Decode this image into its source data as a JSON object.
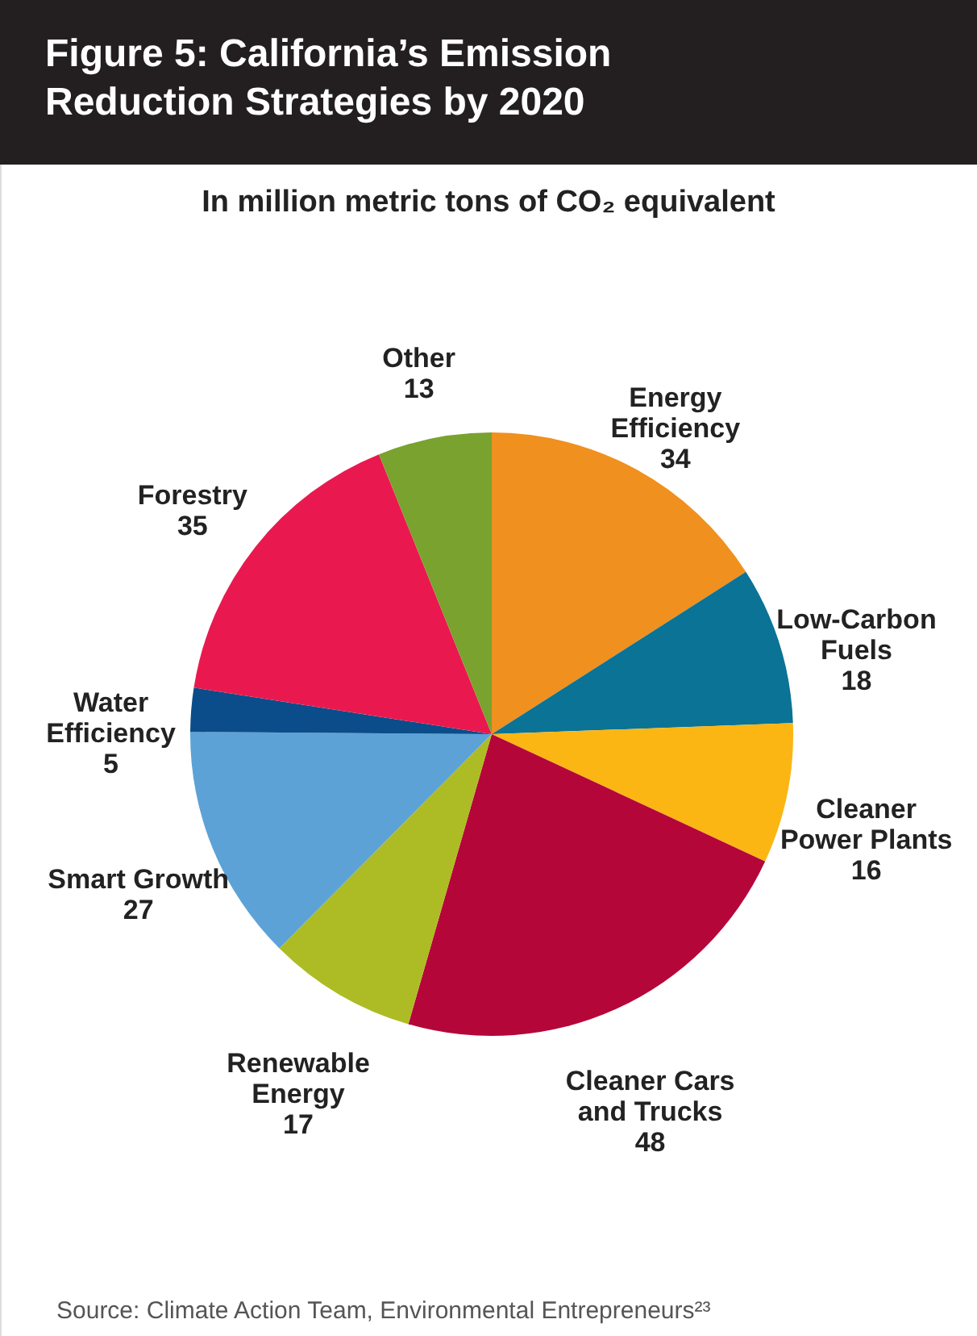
{
  "chart_data": {
    "type": "pie",
    "title": "Figure 5: California’s Emission Reduction Strategies by 2020",
    "subtitle": "In million metric tons of CO₂ equivalent",
    "categories": [
      "Energy Efficiency",
      "Low-Carbon Fuels",
      "Cleaner Power Plants",
      "Cleaner Cars and Trucks",
      "Renewable Energy",
      "Smart Growth",
      "Water Efficiency",
      "Forestry",
      "Other"
    ],
    "values": [
      34,
      18,
      16,
      48,
      17,
      27,
      5,
      35,
      13
    ],
    "colors": [
      "#f0901e",
      "#0a7396",
      "#fbb614",
      "#b5063a",
      "#adbc24",
      "#5ca2d6",
      "#0a4d8a",
      "#e9194f",
      "#79a22f"
    ],
    "data_labels": true,
    "annotations": [
      "Source: Climate Action Team, Environmental Entrepreneurs²³"
    ]
  }
}
